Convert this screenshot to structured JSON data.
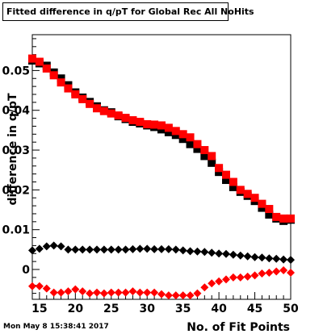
{
  "footer": {
    "timestamp": "Mon May  8 15:38:41 2017"
  },
  "chart_data": {
    "type": "scatter",
    "title": "Fitted difference in q/pT for Global Rec All NoHits",
    "xlabel": "No. of Fit Points",
    "ylabel": "difference in q/pT",
    "xlim": [
      14,
      50
    ],
    "ylim": [
      -0.0075,
      0.059
    ],
    "x_ticks": [
      15,
      20,
      25,
      30,
      35,
      40,
      45,
      50
    ],
    "x_tick_labels": [
      "15",
      "20",
      "25",
      "30",
      "35",
      "40",
      "45",
      "50"
    ],
    "y_ticks": [
      0,
      0.01,
      0.02,
      0.03,
      0.04,
      0.05
    ],
    "y_tick_labels": [
      "0",
      "0.01",
      "0.02",
      "0.03",
      "0.04",
      "0.05"
    ],
    "grid": false,
    "legend": null,
    "series": [
      {
        "color": "#000000",
        "marker": "square",
        "x": [
          14,
          15,
          16,
          17,
          18,
          19,
          20,
          21,
          22,
          23,
          24,
          25,
          26,
          27,
          28,
          29,
          30,
          31,
          32,
          33,
          34,
          35,
          36,
          37,
          38,
          39,
          40,
          41,
          42,
          43,
          44,
          45,
          46,
          47,
          48,
          49,
          50
        ],
        "y": [
          0.0525,
          0.0518,
          0.0512,
          0.0495,
          0.048,
          0.0463,
          0.0445,
          0.0432,
          0.0421,
          0.041,
          0.04,
          0.0395,
          0.0385,
          0.0378,
          0.0371,
          0.0367,
          0.0362,
          0.0358,
          0.0352,
          0.0345,
          0.0338,
          0.0328,
          0.0315,
          0.0303,
          0.0285,
          0.0268,
          0.0245,
          0.0225,
          0.0207,
          0.0195,
          0.0185,
          0.0172,
          0.0155,
          0.0138,
          0.0128,
          0.0122,
          0.0125
        ]
      },
      {
        "color": "#ff0000",
        "marker": "square",
        "x": [
          14,
          15,
          16,
          17,
          18,
          19,
          20,
          21,
          22,
          23,
          24,
          25,
          26,
          27,
          28,
          29,
          30,
          31,
          32,
          33,
          34,
          35,
          36,
          37,
          38,
          39,
          40,
          41,
          42,
          43,
          44,
          45,
          46,
          47,
          48,
          49,
          50
        ],
        "y": [
          0.053,
          0.0522,
          0.0505,
          0.0488,
          0.047,
          0.0455,
          0.044,
          0.0428,
          0.0416,
          0.0405,
          0.0398,
          0.0392,
          0.0387,
          0.0381,
          0.0375,
          0.0371,
          0.0365,
          0.0364,
          0.0362,
          0.0356,
          0.0348,
          0.034,
          0.0332,
          0.0315,
          0.03,
          0.0285,
          0.0255,
          0.0238,
          0.022,
          0.02,
          0.019,
          0.018,
          0.0165,
          0.0152,
          0.0132,
          0.0128,
          0.0128
        ]
      },
      {
        "color": "#000000",
        "marker": "diamond",
        "x": [
          14,
          15,
          16,
          17,
          18,
          19,
          20,
          21,
          22,
          23,
          24,
          25,
          26,
          27,
          28,
          29,
          30,
          31,
          32,
          33,
          34,
          35,
          36,
          37,
          38,
          39,
          40,
          41,
          42,
          43,
          44,
          45,
          46,
          47,
          48,
          49,
          50
        ],
        "y": [
          0.0048,
          0.0052,
          0.0058,
          0.006,
          0.0058,
          0.005,
          0.005,
          0.005,
          0.005,
          0.005,
          0.005,
          0.005,
          0.005,
          0.005,
          0.0051,
          0.0052,
          0.0052,
          0.0051,
          0.0051,
          0.0051,
          0.005,
          0.0048,
          0.0046,
          0.0045,
          0.0044,
          0.0042,
          0.004,
          0.0039,
          0.0037,
          0.0035,
          0.0033,
          0.0031,
          0.003,
          0.0028,
          0.0027,
          0.0025,
          0.0024
        ]
      },
      {
        "color": "#ff0000",
        "marker": "diamond",
        "x": [
          14,
          15,
          16,
          17,
          18,
          19,
          20,
          21,
          22,
          23,
          24,
          25,
          26,
          27,
          28,
          29,
          30,
          31,
          32,
          33,
          34,
          35,
          36,
          37,
          38,
          39,
          40,
          41,
          42,
          43,
          44,
          45,
          46,
          47,
          48,
          49,
          50
        ],
        "y": [
          -0.0042,
          -0.0042,
          -0.0048,
          -0.0058,
          -0.0058,
          -0.0055,
          -0.005,
          -0.0055,
          -0.006,
          -0.0058,
          -0.006,
          -0.0058,
          -0.0058,
          -0.0058,
          -0.0055,
          -0.0058,
          -0.0058,
          -0.0058,
          -0.0062,
          -0.0065,
          -0.0065,
          -0.0065,
          -0.0065,
          -0.006,
          -0.0045,
          -0.0035,
          -0.003,
          -0.0025,
          -0.002,
          -0.002,
          -0.0018,
          -0.0015,
          -0.001,
          -0.0008,
          -0.0005,
          -0.0002,
          -0.0008
        ]
      }
    ]
  }
}
